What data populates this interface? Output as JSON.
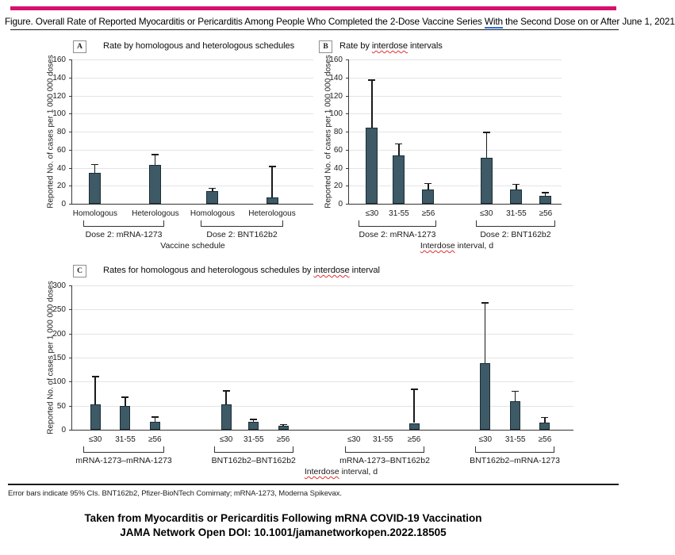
{
  "page": {
    "accent_color": "#d4116e",
    "bar_color": "#3d5a66",
    "bar_border": "#1c2e36"
  },
  "title": {
    "pre": "Figure. Overall Rate of Reported Myocarditis or Pericarditis Among People Who Completed the 2-Dose Vaccine Series ",
    "highlight": "With",
    "post": " the Second Dose on or After June 1, 2021"
  },
  "footnote": "Error bars indicate 95% CIs. BNT162b2, Pfizer-BioNTech Comirnaty; mRNA-1273, Moderna Spikevax.",
  "citation": {
    "line1": "Taken from Myocarditis or Pericarditis Following mRNA COVID-19 Vaccination",
    "line2": "JAMA Network Open DOI: 10.1001/jamanetworkopen.2022.18505"
  },
  "chart_data": [
    {
      "id": "A",
      "type": "bar",
      "panel_letter": "A",
      "title": "Rate by homologous and heterologous schedules",
      "title_misspelled_word": null,
      "ylabel": "Reported No. of cases per 1 000 000 doses",
      "xlabel": "Vaccine schedule",
      "xlabel_misspelled_word": null,
      "ylim": [
        0,
        160
      ],
      "ystep": 20,
      "grid": true,
      "groups": [
        {
          "label": "Dose 2: mRNA-1273",
          "bars": [
            {
              "category": "Homologous",
              "value": 34,
              "ci_high": 44
            },
            {
              "category": "Heterologous",
              "value": 43,
              "ci_high": 55
            }
          ]
        },
        {
          "label": "Dose 2: BNT162b2",
          "bars": [
            {
              "category": "Homologous",
              "value": 14,
              "ci_high": 18
            },
            {
              "category": "Heterologous",
              "value": 7,
              "ci_high": 42
            }
          ]
        }
      ]
    },
    {
      "id": "B",
      "type": "bar",
      "panel_letter": "B",
      "title": "Rate by interdose intervals",
      "title_misspelled_word": "interdose",
      "ylabel": "Reported No. of cases per 1 000 000 doses",
      "xlabel": "Interdose interval, d",
      "xlabel_misspelled_word": "Interdose",
      "ylim": [
        0,
        160
      ],
      "ystep": 20,
      "grid": true,
      "groups": [
        {
          "label": "Dose 2: mRNA-1273",
          "bars": [
            {
              "category": "≤30",
              "value": 84,
              "ci_high": 138
            },
            {
              "category": "31-55",
              "value": 54,
              "ci_high": 67
            },
            {
              "category": "≥56",
              "value": 16,
              "ci_high": 23
            }
          ]
        },
        {
          "label": "Dose 2: BNT162b2",
          "bars": [
            {
              "category": "≤30",
              "value": 51,
              "ci_high": 80
            },
            {
              "category": "31-55",
              "value": 16,
              "ci_high": 22
            },
            {
              "category": "≥56",
              "value": 9,
              "ci_high": 13
            }
          ]
        }
      ]
    },
    {
      "id": "C",
      "type": "bar",
      "panel_letter": "C",
      "title": "Rates for homologous and heterologous schedules by interdose interval",
      "title_misspelled_word": "interdose",
      "ylabel": "Reported No. of cases per 1 000 000 doses",
      "xlabel": "Interdose interval, d",
      "xlabel_misspelled_word": "Interdose",
      "ylim": [
        0,
        300
      ],
      "ystep": 50,
      "grid": true,
      "groups": [
        {
          "label": "mRNA-1273–mRNA-1273",
          "bars": [
            {
              "category": "≤30",
              "value": 53,
              "ci_high": 112
            },
            {
              "category": "31-55",
              "value": 50,
              "ci_high": 69
            },
            {
              "category": "≥56",
              "value": 17,
              "ci_high": 28
            }
          ]
        },
        {
          "label": "BNT162b2–BNT162b2",
          "bars": [
            {
              "category": "≤30",
              "value": 53,
              "ci_high": 82
            },
            {
              "category": "31-55",
              "value": 17,
              "ci_high": 23
            },
            {
              "category": "≥56",
              "value": 8,
              "ci_high": 12
            }
          ]
        },
        {
          "label": "mRNA-1273–BNT162b2",
          "bars": [
            {
              "category": "≤30",
              "value": 0,
              "ci_high": null
            },
            {
              "category": "31-55",
              "value": 0,
              "ci_high": null
            },
            {
              "category": "≥56",
              "value": 14,
              "ci_high": 85
            }
          ]
        },
        {
          "label": "BNT162b2–mRNA-1273",
          "bars": [
            {
              "category": "≤30",
              "value": 139,
              "ci_high": 265
            },
            {
              "category": "31-55",
              "value": 59,
              "ci_high": 81
            },
            {
              "category": "≥56",
              "value": 15,
              "ci_high": 27
            }
          ]
        }
      ]
    }
  ]
}
